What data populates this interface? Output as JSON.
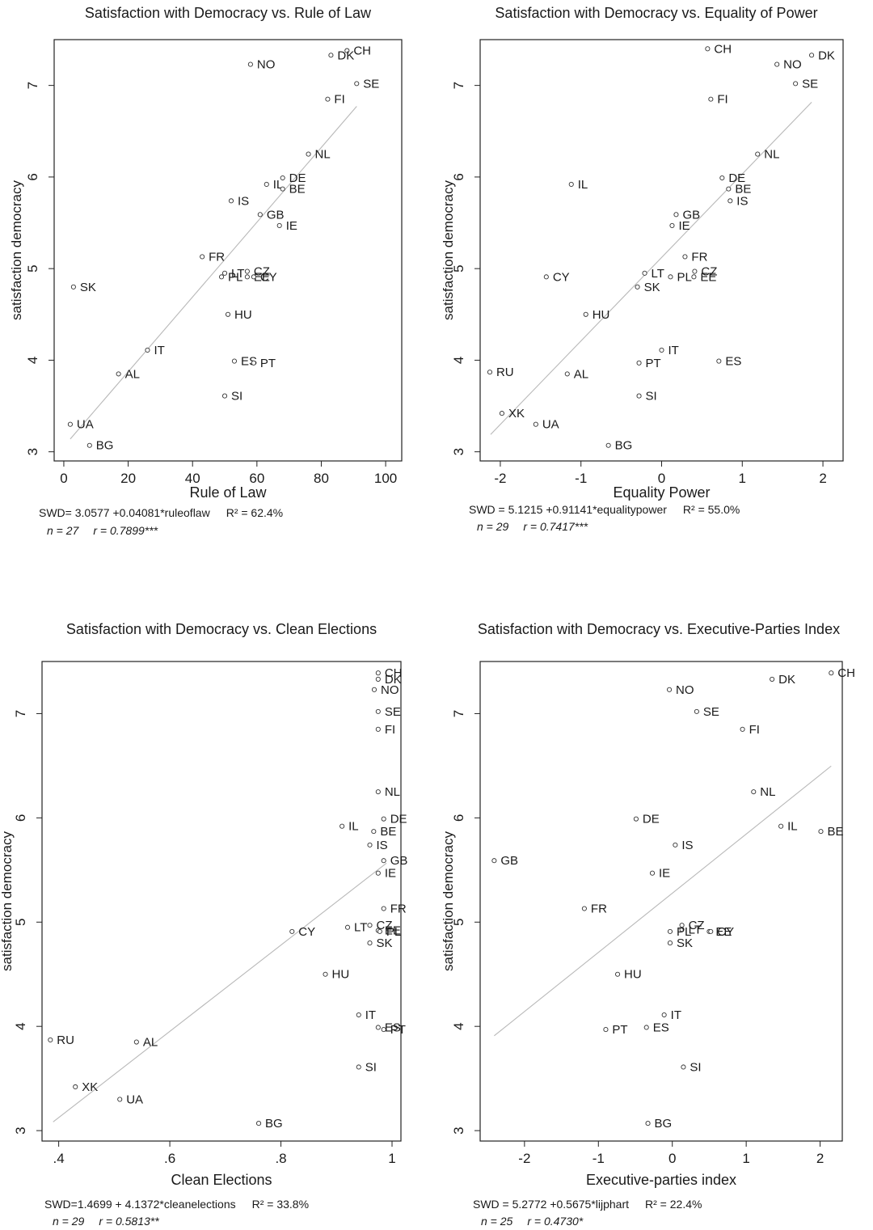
{
  "chart_data": [
    {
      "type": "scatter",
      "title": "Satisfaction with Democracy vs. Rule of Law",
      "xlabel": "Rule of Law",
      "ylabel": "satisfaction democracy",
      "xlim": [
        -3,
        105
      ],
      "ylim": [
        2.9,
        7.5
      ],
      "xticks": [
        0,
        20,
        40,
        60,
        80,
        100
      ],
      "xtick_labels": [
        "0",
        "20",
        "40",
        "60",
        "80",
        "100"
      ],
      "yticks": [
        3,
        4,
        5,
        6,
        7
      ],
      "ytick_labels": [
        "3",
        "4",
        "5",
        "6",
        "7"
      ],
      "grid": false,
      "fit_line": {
        "intercept": 3.0577,
        "slope": 0.04081,
        "x_from": 2,
        "x_to": 91
      },
      "points": [
        {
          "label": "CH",
          "x": 88,
          "y": 7.38
        },
        {
          "label": "DK",
          "x": 83,
          "y": 7.33
        },
        {
          "label": "NO",
          "x": 58,
          "y": 7.23
        },
        {
          "label": "SE",
          "x": 91,
          "y": 7.02
        },
        {
          "label": "FI",
          "x": 82,
          "y": 6.85
        },
        {
          "label": "NL",
          "x": 76,
          "y": 6.25
        },
        {
          "label": "DE",
          "x": 68,
          "y": 5.99
        },
        {
          "label": "IL",
          "x": 63,
          "y": 5.92
        },
        {
          "label": "BE",
          "x": 68,
          "y": 5.87
        },
        {
          "label": "IS",
          "x": 52,
          "y": 5.74
        },
        {
          "label": "GB",
          "x": 61,
          "y": 5.59
        },
        {
          "label": "IE",
          "x": 67,
          "y": 5.47
        },
        {
          "label": "FR",
          "x": 43,
          "y": 5.13
        },
        {
          "label": "CZ",
          "x": 57,
          "y": 4.97
        },
        {
          "label": "LT",
          "x": 50,
          "y": 4.95
        },
        {
          "label": "PL",
          "x": 49,
          "y": 4.91
        },
        {
          "label": "EE",
          "x": 57,
          "y": 4.91
        },
        {
          "label": "CY",
          "x": 59,
          "y": 4.91
        },
        {
          "label": "SK",
          "x": 3,
          "y": 4.8
        },
        {
          "label": "HU",
          "x": 51,
          "y": 4.5
        },
        {
          "label": "IT",
          "x": 26,
          "y": 4.11
        },
        {
          "label": "ES",
          "x": 53,
          "y": 3.99
        },
        {
          "label": "PT",
          "x": 59,
          "y": 3.97
        },
        {
          "label": "AL",
          "x": 17,
          "y": 3.85
        },
        {
          "label": "SI",
          "x": 50,
          "y": 3.61
        },
        {
          "label": "UA",
          "x": 2,
          "y": 3.3
        },
        {
          "label": "BG",
          "x": 8,
          "y": 3.07
        }
      ],
      "note_line1": {
        "equation": "SWD= 3.0577 +0.04081*ruleoflaw",
        "r2": "R² = 62.4%"
      },
      "note_line2": {
        "n": "n = 27",
        "r": "r = 0.7899***"
      }
    },
    {
      "type": "scatter",
      "title": "Satisfaction with Democracy vs. Equality of Power",
      "xlabel": "Equality Power",
      "ylabel": "satisfaction democracy",
      "xlim": [
        -2.25,
        2.25
      ],
      "ylim": [
        2.9,
        7.5
      ],
      "xticks": [
        -2,
        -1,
        0,
        1,
        2
      ],
      "xtick_labels": [
        "-2",
        "-1",
        "0",
        "1",
        "2"
      ],
      "yticks": [
        3,
        4,
        5,
        6,
        7
      ],
      "ytick_labels": [
        "3",
        "4",
        "5",
        "6",
        "7"
      ],
      "grid": false,
      "fit_line": {
        "intercept": 5.1215,
        "slope": 0.91141,
        "x_from": -2.12,
        "x_to": 1.86
      },
      "points": [
        {
          "label": "CH",
          "x": 0.57,
          "y": 7.4
        },
        {
          "label": "DK",
          "x": 1.86,
          "y": 7.33
        },
        {
          "label": "NO",
          "x": 1.43,
          "y": 7.23
        },
        {
          "label": "SE",
          "x": 1.66,
          "y": 7.02
        },
        {
          "label": "FI",
          "x": 0.61,
          "y": 6.85
        },
        {
          "label": "NL",
          "x": 1.19,
          "y": 6.25
        },
        {
          "label": "DE",
          "x": 0.75,
          "y": 5.99
        },
        {
          "label": "IL",
          "x": -1.12,
          "y": 5.92
        },
        {
          "label": "BE",
          "x": 0.83,
          "y": 5.87
        },
        {
          "label": "IS",
          "x": 0.85,
          "y": 5.74
        },
        {
          "label": "GB",
          "x": 0.18,
          "y": 5.59
        },
        {
          "label": "IE",
          "x": 0.13,
          "y": 5.47
        },
        {
          "label": "FR",
          "x": 0.29,
          "y": 5.13
        },
        {
          "label": "CZ",
          "x": 0.41,
          "y": 4.97
        },
        {
          "label": "LT",
          "x": -0.21,
          "y": 4.95
        },
        {
          "label": "PL",
          "x": 0.11,
          "y": 4.91
        },
        {
          "label": "EE",
          "x": 0.4,
          "y": 4.91
        },
        {
          "label": "CY",
          "x": -1.43,
          "y": 4.91
        },
        {
          "label": "SK",
          "x": -0.3,
          "y": 4.8
        },
        {
          "label": "HU",
          "x": -0.94,
          "y": 4.5
        },
        {
          "label": "IT",
          "x": 0.0,
          "y": 4.11
        },
        {
          "label": "PT",
          "x": -0.28,
          "y": 3.97
        },
        {
          "label": "ES",
          "x": 0.71,
          "y": 3.99
        },
        {
          "label": "RU",
          "x": -2.13,
          "y": 3.87
        },
        {
          "label": "AL",
          "x": -1.17,
          "y": 3.85
        },
        {
          "label": "SI",
          "x": -0.28,
          "y": 3.61
        },
        {
          "label": "XK",
          "x": -1.98,
          "y": 3.42
        },
        {
          "label": "UA",
          "x": -1.56,
          "y": 3.3
        },
        {
          "label": "BG",
          "x": -0.66,
          "y": 3.07
        }
      ],
      "note_line1": {
        "equation": "SWD = 5.1215 +0.91141*equalitypower",
        "r2": "R² = 55.0%"
      },
      "note_line2": {
        "n": "n = 29",
        "r": "r = 0.7417***"
      }
    },
    {
      "type": "scatter",
      "title": "Satisfaction with Democracy vs. Clean Elections",
      "xlabel": "Clean Elections",
      "ylabel": "satisfaction democracy",
      "xlim": [
        0.37,
        1.016
      ],
      "ylim": [
        2.9,
        7.5
      ],
      "xticks": [
        0.4,
        0.6,
        0.8,
        1.0
      ],
      "xtick_labels": [
        ".4",
        ".6",
        ".8",
        "1"
      ],
      "yticks": [
        3,
        4,
        5,
        6,
        7
      ],
      "ytick_labels": [
        "3",
        "4",
        "5",
        "6",
        "7"
      ],
      "grid": false,
      "fit_line": {
        "intercept": 1.4699,
        "slope": 4.1372,
        "x_from": 0.39,
        "x_to": 0.99
      },
      "points": [
        {
          "label": "CH",
          "x": 0.975,
          "y": 7.39
        },
        {
          "label": "DK",
          "x": 0.975,
          "y": 7.33
        },
        {
          "label": "NO",
          "x": 0.968,
          "y": 7.23
        },
        {
          "label": "SE",
          "x": 0.975,
          "y": 7.02
        },
        {
          "label": "FI",
          "x": 0.975,
          "y": 6.85
        },
        {
          "label": "NL",
          "x": 0.975,
          "y": 6.25
        },
        {
          "label": "DE",
          "x": 0.985,
          "y": 5.99
        },
        {
          "label": "IL",
          "x": 0.91,
          "y": 5.92
        },
        {
          "label": "BE",
          "x": 0.967,
          "y": 5.87
        },
        {
          "label": "IS",
          "x": 0.96,
          "y": 5.74
        },
        {
          "label": "GB",
          "x": 0.985,
          "y": 5.59
        },
        {
          "label": "IE",
          "x": 0.975,
          "y": 5.47
        },
        {
          "label": "FR",
          "x": 0.985,
          "y": 5.13
        },
        {
          "label": "CZ",
          "x": 0.96,
          "y": 4.97
        },
        {
          "label": "LT",
          "x": 0.92,
          "y": 4.95
        },
        {
          "label": "EE",
          "x": 0.975,
          "y": 4.92
        },
        {
          "label": "PL",
          "x": 0.978,
          "y": 4.91
        },
        {
          "label": "CY",
          "x": 0.82,
          "y": 4.91
        },
        {
          "label": "SK",
          "x": 0.96,
          "y": 4.8
        },
        {
          "label": "HU",
          "x": 0.88,
          "y": 4.5
        },
        {
          "label": "IT",
          "x": 0.94,
          "y": 4.11
        },
        {
          "label": "ES",
          "x": 0.975,
          "y": 3.99
        },
        {
          "label": "PT",
          "x": 0.985,
          "y": 3.97
        },
        {
          "label": "RU",
          "x": 0.385,
          "y": 3.87
        },
        {
          "label": "AL",
          "x": 0.54,
          "y": 3.85
        },
        {
          "label": "SI",
          "x": 0.94,
          "y": 3.61
        },
        {
          "label": "XK",
          "x": 0.43,
          "y": 3.42
        },
        {
          "label": "UA",
          "x": 0.51,
          "y": 3.3
        },
        {
          "label": "BG",
          "x": 0.76,
          "y": 3.07
        }
      ],
      "note_line1": {
        "equation": "SWD=1.4699 + 4.1372*cleanelections",
        "r2": "R² = 33.8%"
      },
      "note_line2": {
        "n": "n = 29",
        "r": "r = 0.5813**"
      }
    },
    {
      "type": "scatter",
      "title": "Satisfaction with Democracy vs. Executive-Parties Index",
      "xlabel": "Executive-parties index",
      "ylabel": "satisfaction democracy",
      "xlim": [
        -2.6,
        2.3
      ],
      "ylim": [
        2.9,
        7.5
      ],
      "xticks": [
        -2,
        -1,
        0,
        1,
        2
      ],
      "xtick_labels": [
        "-2",
        "-1",
        "0",
        "1",
        "2"
      ],
      "yticks": [
        3,
        4,
        5,
        6,
        7
      ],
      "ytick_labels": [
        "3",
        "4",
        "5",
        "6",
        "7"
      ],
      "grid": false,
      "fit_line": {
        "intercept": 5.2772,
        "slope": 0.5675,
        "x_from": -2.41,
        "x_to": 2.15
      },
      "points": [
        {
          "label": "CH",
          "x": 2.15,
          "y": 7.39
        },
        {
          "label": "DK",
          "x": 1.35,
          "y": 7.33
        },
        {
          "label": "NO",
          "x": -0.04,
          "y": 7.23
        },
        {
          "label": "SE",
          "x": 0.33,
          "y": 7.02
        },
        {
          "label": "FI",
          "x": 0.95,
          "y": 6.85
        },
        {
          "label": "NL",
          "x": 1.1,
          "y": 6.25
        },
        {
          "label": "DE",
          "x": -0.49,
          "y": 5.99
        },
        {
          "label": "IL",
          "x": 1.47,
          "y": 5.92
        },
        {
          "label": "BE",
          "x": 2.01,
          "y": 5.87
        },
        {
          "label": "IS",
          "x": 0.04,
          "y": 5.74
        },
        {
          "label": "GB",
          "x": -2.41,
          "y": 5.59
        },
        {
          "label": "IE",
          "x": -0.27,
          "y": 5.47
        },
        {
          "label": "FR",
          "x": -1.19,
          "y": 5.13
        },
        {
          "label": "CZ",
          "x": 0.13,
          "y": 4.97
        },
        {
          "label": "LT",
          "x": 0.13,
          "y": 4.93
        },
        {
          "label": "PL",
          "x": -0.03,
          "y": 4.91
        },
        {
          "label": "EE",
          "x": 0.5,
          "y": 4.91
        },
        {
          "label": "CY",
          "x": 0.52,
          "y": 4.91
        },
        {
          "label": "SK",
          "x": -0.03,
          "y": 4.8
        },
        {
          "label": "HU",
          "x": -0.74,
          "y": 4.5
        },
        {
          "label": "IT",
          "x": -0.11,
          "y": 4.11
        },
        {
          "label": "ES",
          "x": -0.35,
          "y": 3.99
        },
        {
          "label": "PT",
          "x": -0.9,
          "y": 3.97
        },
        {
          "label": "SI",
          "x": 0.15,
          "y": 3.61
        },
        {
          "label": "BG",
          "x": -0.33,
          "y": 3.07
        }
      ],
      "note_line1": {
        "equation": "SWD = 5.2772 +0.5675*lijphart",
        "r2": "R² = 22.4%"
      },
      "note_line2": {
        "n": "n = 25",
        "r": "r = 0.4730*"
      }
    }
  ]
}
